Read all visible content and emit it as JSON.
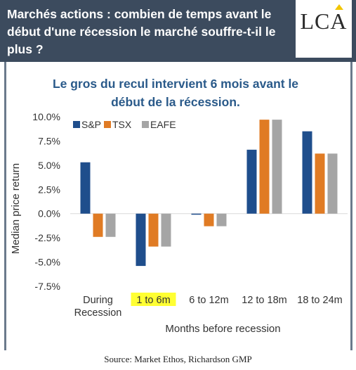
{
  "header": {
    "title": "Marchés actions : combien de temps avant le début d'une récession le marché souffre-t-il le plus ?",
    "logo": "LCA"
  },
  "source": "Source: Market Ethos, Richardson GMP",
  "colors": {
    "header_bg": "#3c4b5e",
    "highlight": "#ffff33",
    "title_blue": "#2a5a8a"
  },
  "chart_data": {
    "type": "bar",
    "title": "Le gros du recul intervient 6 mois avant le début de la récession.",
    "xlabel": "Months before recession",
    "ylabel": "Median price return",
    "ylim": [
      -7.5,
      10.0
    ],
    "yticks": [
      "10.0%",
      "7.5%",
      "5.0%",
      "2.5%",
      "0.0%",
      "-2.5%",
      "-5.0%",
      "-7.5%"
    ],
    "ytick_values": [
      10.0,
      7.5,
      5.0,
      2.5,
      0.0,
      -2.5,
      -5.0,
      -7.5
    ],
    "categories": [
      [
        "During",
        "Recession"
      ],
      [
        "1 to 6m"
      ],
      [
        "6 to 12m"
      ],
      [
        "12 to 18m"
      ],
      [
        "18 to 24m"
      ]
    ],
    "highlighted_category": 1,
    "legend_position": "top-left",
    "grid": false,
    "series": [
      {
        "name": "S&P",
        "color": "#1f4e8c",
        "values": [
          5.3,
          -5.4,
          -0.1,
          6.6,
          8.5
        ]
      },
      {
        "name": "TSX",
        "color": "#e07b24",
        "values": [
          -2.4,
          -3.4,
          -1.3,
          9.7,
          6.2
        ]
      },
      {
        "name": "EAFE",
        "color": "#a5a5a5",
        "values": [
          -2.4,
          -3.4,
          -1.3,
          9.7,
          6.2
        ]
      }
    ]
  }
}
